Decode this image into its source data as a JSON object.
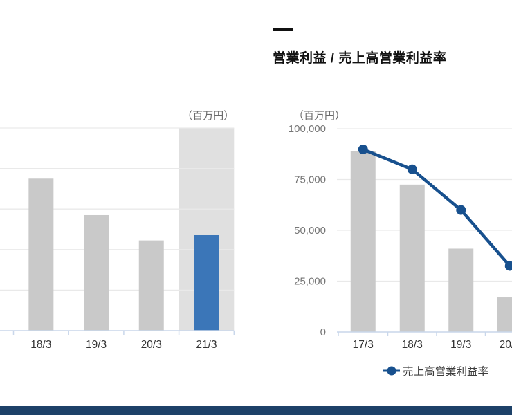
{
  "section_header": {
    "title": "営業利益 / 売上高営業利益率"
  },
  "chart_data": [
    {
      "id": "net-sales-bar-chart",
      "type": "bar",
      "title": "",
      "unit_label": "（百万円）",
      "note": "left chart is cut off at left edge of screenshot; y-axis labels and 17/3 column not visible; 21/3 column has highlight band",
      "categories": [
        "18/3",
        "19/3",
        "20/3",
        "21/3"
      ],
      "values_fraction_of_axis": [
        0.75,
        0.57,
        0.445,
        0.471
      ],
      "ylim": [
        0,
        1
      ],
      "grid": true,
      "highlight_category": "21/3",
      "palette": {
        "bar_default": "#c9c9c9",
        "bar_highlight": "#3b76b8",
        "highlight_band": "#e0e0e0",
        "gridline": "#e9e9e9",
        "axis_line": "#c9d7eb",
        "category_label": "#333333",
        "unit_label": "#6b6b6b"
      }
    },
    {
      "id": "operating-profit-combo-chart",
      "type": "bar+line",
      "title": "営業利益 / 売上高営業利益率",
      "unit_label": "（百万円）",
      "note": "right chart is cut off at right edge of screenshot; 20/3 column partially visible",
      "categories": [
        "17/3",
        "18/3",
        "19/3",
        "20/3"
      ],
      "series": [
        {
          "name": "営業利益",
          "type": "bar",
          "values": [
            89000,
            72500,
            41000,
            17000
          ]
        },
        {
          "name": "売上高営業利益率",
          "type": "line",
          "values_percent_of_axis_height": [
            89.8,
            80,
            60,
            32.5
          ],
          "note": "plotted against hidden secondary axis"
        }
      ],
      "y_ticks": [
        "100,000",
        "75,000",
        "50,000",
        "25,000",
        "0"
      ],
      "ylim": [
        0,
        100000
      ],
      "grid": true,
      "legend": [
        {
          "label": "売上高営業利益率",
          "marker": "line-dot"
        }
      ],
      "palette": {
        "bar_default": "#c9c9c9",
        "line": "#17508e",
        "gridline": "#e9e9e9",
        "axis_line": "#c9d7eb",
        "tick_label": "#767676",
        "category_label": "#333333",
        "unit_label": "#6b6b6b",
        "legend_label": "#3c3c3c"
      }
    }
  ],
  "footer": {
    "color": "#1d4168"
  }
}
